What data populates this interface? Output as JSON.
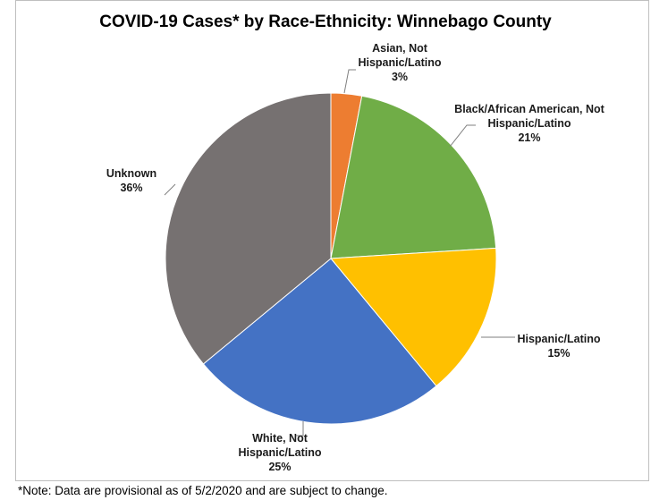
{
  "chart_data": {
    "type": "pie",
    "title": "COVID-19 Cases* by Race-Ethnicity: Winnebago County",
    "start_angle_deg": 0,
    "direction": "clockwise",
    "slices": [
      {
        "label_lines": [
          "Asian, Not",
          "Hispanic/Latino"
        ],
        "value": 3,
        "value_label": "3%",
        "color": "#ed7d31"
      },
      {
        "label_lines": [
          "Black/African American, Not",
          "Hispanic/Latino"
        ],
        "value": 21,
        "value_label": "21%",
        "color": "#70ad47"
      },
      {
        "label_lines": [
          "Hispanic/Latino"
        ],
        "value": 15,
        "value_label": "15%",
        "color": "#ffc000"
      },
      {
        "label_lines": [
          "White, Not",
          "Hispanic/Latino"
        ],
        "value": 25,
        "value_label": "25%",
        "color": "#4472c4"
      },
      {
        "label_lines": [
          "Unknown"
        ],
        "value": 36,
        "value_label": "36%",
        "color": "#767171"
      }
    ],
    "legend": "none",
    "note": "*Note: Data are provisional as of 5/2/2020 and are subject to change."
  }
}
